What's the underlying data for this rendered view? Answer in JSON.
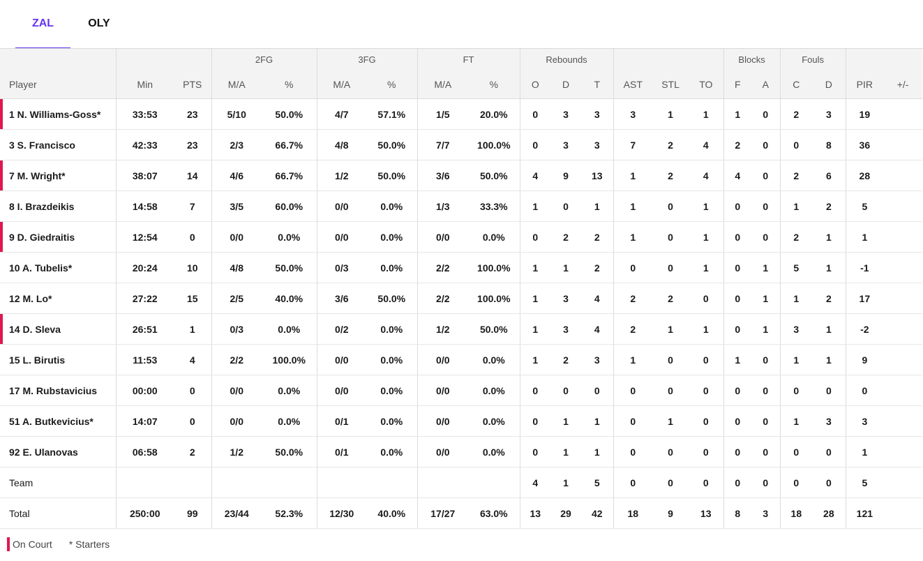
{
  "tabs": [
    {
      "label": "ZAL",
      "active": true
    },
    {
      "label": "OLY",
      "active": false
    }
  ],
  "colors": {
    "accent": "#6633ee",
    "on_court": "#e0174f"
  },
  "groups": {
    "fg2": "2FG",
    "fg3": "3FG",
    "ft": "FT",
    "rebounds": "Rebounds",
    "blocks": "Blocks",
    "fouls": "Fouls"
  },
  "columns": [
    "Player",
    "Min",
    "PTS",
    "M/A",
    "%",
    "M/A",
    "%",
    "M/A",
    "%",
    "O",
    "D",
    "T",
    "AST",
    "STL",
    "TO",
    "F",
    "A",
    "C",
    "D",
    "PIR",
    "+/-"
  ],
  "players": [
    {
      "name": "1 N. Williams-Goss*",
      "on_court": true,
      "stats": [
        "33:53",
        "23",
        "5/10",
        "50.0%",
        "4/7",
        "57.1%",
        "1/5",
        "20.0%",
        "0",
        "3",
        "3",
        "3",
        "1",
        "1",
        "1",
        "0",
        "2",
        "3",
        "19",
        ""
      ]
    },
    {
      "name": "3 S. Francisco",
      "on_court": false,
      "stats": [
        "42:33",
        "23",
        "2/3",
        "66.7%",
        "4/8",
        "50.0%",
        "7/7",
        "100.0%",
        "0",
        "3",
        "3",
        "7",
        "2",
        "4",
        "2",
        "0",
        "0",
        "8",
        "36",
        ""
      ]
    },
    {
      "name": "7 M. Wright*",
      "on_court": true,
      "stats": [
        "38:07",
        "14",
        "4/6",
        "66.7%",
        "1/2",
        "50.0%",
        "3/6",
        "50.0%",
        "4",
        "9",
        "13",
        "1",
        "2",
        "4",
        "4",
        "0",
        "2",
        "6",
        "28",
        ""
      ]
    },
    {
      "name": "8 I. Brazdeikis",
      "on_court": false,
      "stats": [
        "14:58",
        "7",
        "3/5",
        "60.0%",
        "0/0",
        "0.0%",
        "1/3",
        "33.3%",
        "1",
        "0",
        "1",
        "1",
        "0",
        "1",
        "0",
        "0",
        "1",
        "2",
        "5",
        ""
      ]
    },
    {
      "name": "9 D. Giedraitis",
      "on_court": true,
      "stats": [
        "12:54",
        "0",
        "0/0",
        "0.0%",
        "0/0",
        "0.0%",
        "0/0",
        "0.0%",
        "0",
        "2",
        "2",
        "1",
        "0",
        "1",
        "0",
        "0",
        "2",
        "1",
        "1",
        ""
      ]
    },
    {
      "name": "10 A. Tubelis*",
      "on_court": false,
      "stats": [
        "20:24",
        "10",
        "4/8",
        "50.0%",
        "0/3",
        "0.0%",
        "2/2",
        "100.0%",
        "1",
        "1",
        "2",
        "0",
        "0",
        "1",
        "0",
        "1",
        "5",
        "1",
        "-1",
        ""
      ]
    },
    {
      "name": "12 M. Lo*",
      "on_court": false,
      "stats": [
        "27:22",
        "15",
        "2/5",
        "40.0%",
        "3/6",
        "50.0%",
        "2/2",
        "100.0%",
        "1",
        "3",
        "4",
        "2",
        "2",
        "0",
        "0",
        "1",
        "1",
        "2",
        "17",
        ""
      ]
    },
    {
      "name": "14 D. Sleva",
      "on_court": true,
      "stats": [
        "26:51",
        "1",
        "0/3",
        "0.0%",
        "0/2",
        "0.0%",
        "1/2",
        "50.0%",
        "1",
        "3",
        "4",
        "2",
        "1",
        "1",
        "0",
        "1",
        "3",
        "1",
        "-2",
        ""
      ]
    },
    {
      "name": "15 L. Birutis",
      "on_court": false,
      "stats": [
        "11:53",
        "4",
        "2/2",
        "100.0%",
        "0/0",
        "0.0%",
        "0/0",
        "0.0%",
        "1",
        "2",
        "3",
        "1",
        "0",
        "0",
        "1",
        "0",
        "1",
        "1",
        "9",
        ""
      ]
    },
    {
      "name": "17 M. Rubstavicius",
      "on_court": false,
      "stats": [
        "00:00",
        "0",
        "0/0",
        "0.0%",
        "0/0",
        "0.0%",
        "0/0",
        "0.0%",
        "0",
        "0",
        "0",
        "0",
        "0",
        "0",
        "0",
        "0",
        "0",
        "0",
        "0",
        ""
      ]
    },
    {
      "name": "51 A. Butkevicius*",
      "on_court": false,
      "stats": [
        "14:07",
        "0",
        "0/0",
        "0.0%",
        "0/1",
        "0.0%",
        "0/0",
        "0.0%",
        "0",
        "1",
        "1",
        "0",
        "1",
        "0",
        "0",
        "0",
        "1",
        "3",
        "3",
        ""
      ]
    },
    {
      "name": "92 E. Ulanovas",
      "on_court": false,
      "stats": [
        "06:58",
        "2",
        "1/2",
        "50.0%",
        "0/1",
        "0.0%",
        "0/0",
        "0.0%",
        "0",
        "1",
        "1",
        "0",
        "0",
        "0",
        "0",
        "0",
        "0",
        "0",
        "1",
        ""
      ]
    }
  ],
  "team": {
    "name": "Team",
    "stats": [
      "",
      "",
      "",
      "",
      "",
      "",
      "",
      "",
      "4",
      "1",
      "5",
      "0",
      "0",
      "0",
      "0",
      "0",
      "0",
      "0",
      "5",
      ""
    ]
  },
  "total": {
    "name": "Total",
    "stats": [
      "250:00",
      "99",
      "23/44",
      "52.3%",
      "12/30",
      "40.0%",
      "17/27",
      "63.0%",
      "13",
      "29",
      "42",
      "18",
      "9",
      "13",
      "8",
      "3",
      "18",
      "28",
      "121",
      ""
    ]
  },
  "legend": {
    "on_court": "On Court",
    "starters": "* Starters"
  }
}
